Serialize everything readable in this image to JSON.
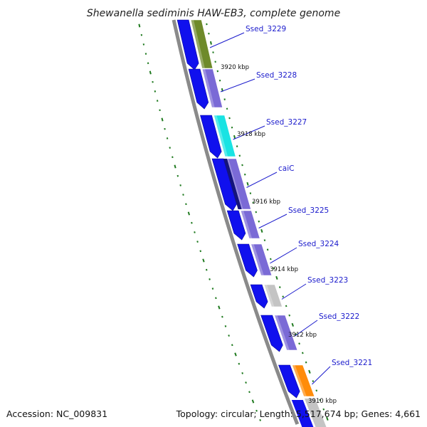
{
  "map": {
    "title": "Shewanella sediminis HAW-EB3, complete genome",
    "accession_text": "Accession: NC_009831",
    "summary_text": "Topology: circular; Length: 5,517,674 bp; Genes: 4,661"
  },
  "colors": {
    "backbone": "#8a8a8a",
    "label": "#1a1acc",
    "ticks": "#1f7a1f",
    "cds_dark": "#1010ee",
    "olive": "#6e8a2a",
    "purple": "#7a6ad6",
    "cyan": "#19e3e3",
    "navy": "#15157a",
    "gray": "#c4c4c4",
    "orange": "#ff8c0a"
  },
  "kbp_markers": [
    "3920 kbp",
    "3918 kbp",
    "3916 kbp",
    "3914 kbp",
    "3912 kbp",
    "3910 kbp"
  ],
  "genes": [
    {
      "label": "Ssed_3229",
      "color": "olive"
    },
    {
      "label": "Ssed_3228",
      "color": "purple"
    },
    {
      "label": "Ssed_3227",
      "color": "cyan"
    },
    {
      "label": "caiC",
      "color": "purple"
    },
    {
      "label": "Ssed_3225",
      "color": "purple"
    },
    {
      "label": "Ssed_3224",
      "color": "purple"
    },
    {
      "label": "Ssed_3223",
      "color": "gray"
    },
    {
      "label": "Ssed_3222",
      "color": "purple"
    },
    {
      "label": "Ssed_3221",
      "color": "orange"
    }
  ]
}
